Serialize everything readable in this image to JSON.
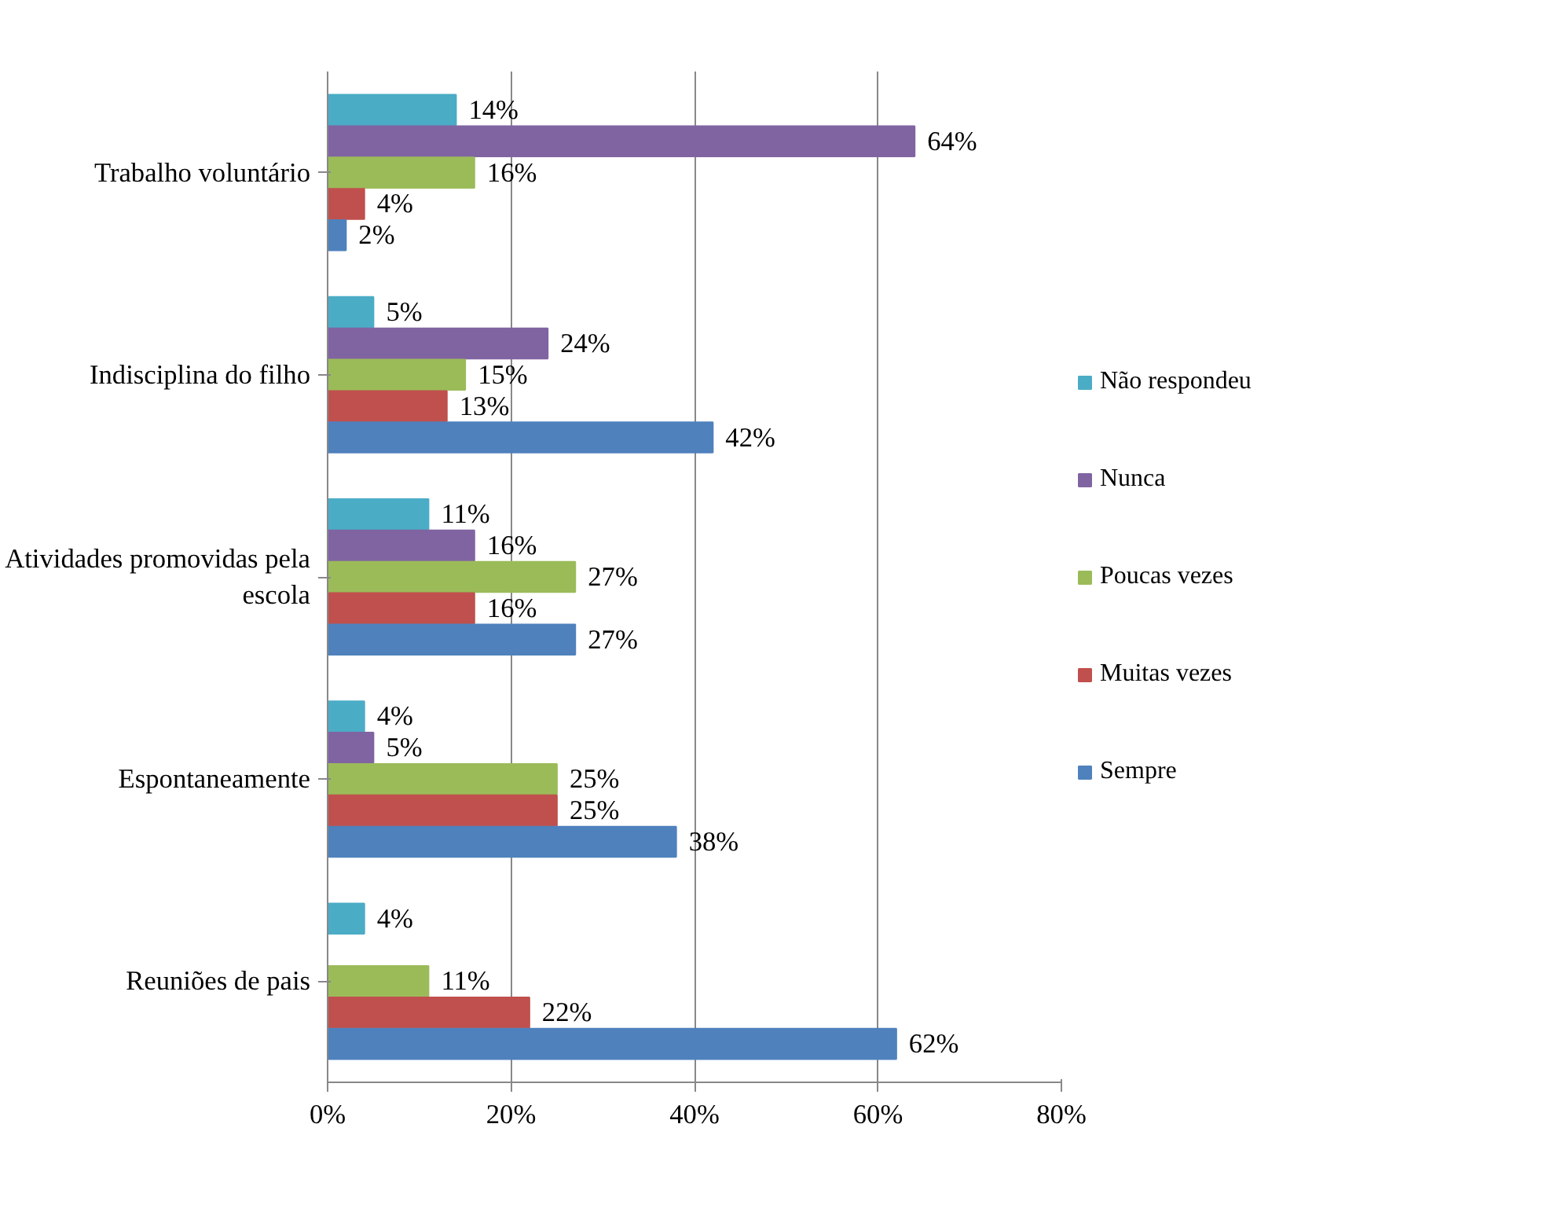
{
  "chart_data": {
    "type": "bar",
    "orientation": "horizontal",
    "categories": [
      "Trabalho voluntário",
      "Indisciplina do filho",
      "Atividades promovidas pela escola",
      "Espontaneamente",
      "Reuniões de pais"
    ],
    "series": [
      {
        "name": "Não respondeu",
        "color": "#4bacc6",
        "values": [
          14,
          5,
          11,
          4,
          4
        ],
        "value_labels": [
          "14%",
          "5%",
          "11%",
          "4%",
          "4%"
        ]
      },
      {
        "name": "Nunca",
        "color": "#8064a2",
        "values": [
          64,
          24,
          16,
          5,
          null
        ],
        "value_labels": [
          "64%",
          "24%",
          "16%",
          "5%",
          null
        ]
      },
      {
        "name": "Poucas vezes",
        "color": "#9bbb59",
        "values": [
          16,
          15,
          27,
          25,
          11
        ],
        "value_labels": [
          "16%",
          "15%",
          "27%",
          "25%",
          "11%"
        ]
      },
      {
        "name": "Muitas vezes",
        "color": "#c0504d",
        "values": [
          4,
          13,
          16,
          25,
          22
        ],
        "value_labels": [
          "4%",
          "13%",
          "16%",
          "25%",
          "22%"
        ]
      },
      {
        "name": "Sempre",
        "color": "#4f81bd",
        "values": [
          2,
          42,
          27,
          38,
          62
        ],
        "value_labels": [
          "2%",
          "42%",
          "27%",
          "38%",
          "62%"
        ]
      }
    ],
    "xlim": [
      0,
      80
    ],
    "xticks": [
      {
        "value": 0,
        "label": "0%"
      },
      {
        "value": 20,
        "label": "20%"
      },
      {
        "value": 40,
        "label": "40%"
      },
      {
        "value": 60,
        "label": "60%"
      },
      {
        "value": 80,
        "label": "80%"
      }
    ],
    "grid": "x",
    "legend": "right"
  }
}
